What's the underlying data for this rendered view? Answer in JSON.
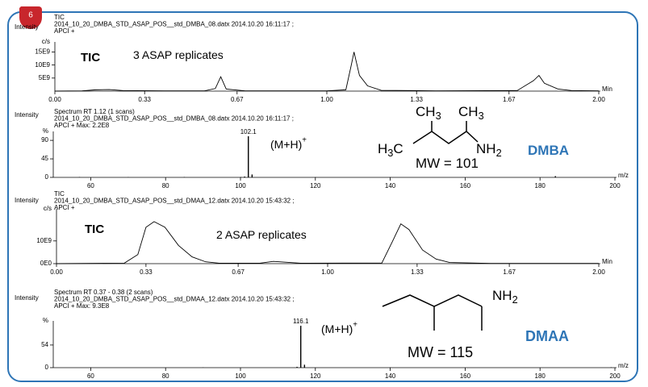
{
  "badge": "6",
  "chart_data": [
    {
      "type": "line",
      "y_label": "Intensity",
      "header": [
        "TIC",
        "2014_10_20_DMBA_STD_ASAP_POS__std_DMBA_08.datx 2014.10.20 16:11:17 ;",
        "APCI +"
      ],
      "y_unit": "c/s",
      "x_label": "Min",
      "color": "#000000",
      "x": [
        0,
        0.1,
        0.15,
        0.2,
        0.25,
        0.4,
        0.55,
        0.59,
        0.61,
        0.63,
        0.7,
        1.0,
        1.07,
        1.09,
        1.1,
        1.12,
        1.15,
        1.2,
        1.4,
        1.7,
        1.76,
        1.78,
        1.8,
        1.85,
        1.9,
        2.0
      ],
      "values": [
        0,
        100000000.0,
        500000000.0,
        600000000.0,
        200000000.0,
        100000000.0,
        100000000.0,
        1000000000.0,
        5500000000.0,
        800000000.0,
        100000000.0,
        100000000.0,
        500000000.0,
        10000000000.0,
        15000000000.0,
        6000000000.0,
        2000000000.0,
        300000000.0,
        100000000.0,
        200000000.0,
        4000000000.0,
        6000000000.0,
        3000000000.0,
        800000000.0,
        200000000.0,
        100000000.0
      ],
      "xlim": [
        0,
        2
      ],
      "ylim": [
        0,
        17000000000.0
      ],
      "xticks": [
        {
          "value": 0,
          "label": "0.00"
        },
        0.33,
        0.67,
        {
          "value": 1,
          "label": "1.00"
        },
        1.33,
        1.67,
        {
          "value": 2,
          "label": "2.00"
        }
      ],
      "yticks": [
        {
          "value": 5000000000.0,
          "label": "5E9"
        },
        {
          "value": 10000000000.0,
          "label": "10E9"
        },
        {
          "value": 15000000000.0,
          "label": "15E9"
        }
      ],
      "annotations": [
        {
          "text": "TIC"
        },
        {
          "text": "3 ASAP replicates"
        }
      ]
    },
    {
      "type": "spectrum",
      "y_label": "Intensity",
      "header": [
        "Spectrum RT 1.12 (1 scans)",
        "2014_10_20_DMBA_STD_ASAP_POS__std_DMBA_08.datx 2014.10.20 16:11:17 ;",
        "APCI + Max: 2.2E8"
      ],
      "y_unit": "%",
      "x_label": "m/z",
      "color": "#000000",
      "x": [
        57,
        70,
        85,
        100.1,
        101.1,
        102.1,
        103.1,
        120,
        140,
        184.1
      ],
      "values": [
        1,
        0.5,
        1,
        1,
        2,
        100,
        7,
        0.5,
        0.5,
        3
      ],
      "xlim": [
        50,
        200
      ],
      "ylim": [
        0,
        100
      ],
      "xticks": [
        60,
        80,
        100,
        120,
        140,
        160,
        180,
        200
      ],
      "yticks": [
        0,
        45,
        90
      ],
      "annotations": [
        {
          "text": "(M+H)",
          "sup": "+"
        },
        {
          "text": "MW = 101"
        },
        {
          "text": "DMBA"
        }
      ],
      "structure": [
        {
          "text": "CH",
          "sub": "3"
        },
        {
          "text": "CH",
          "sub": "3"
        },
        {
          "text": "H",
          "sub": "3",
          "tail": "C"
        },
        {
          "text": "NH",
          "sub": "2"
        }
      ]
    },
    {
      "type": "line",
      "y_label": "Intensity",
      "header": [
        "TIC",
        "2014_10_20_DMBA_STD_ASAP_POS__std_DMAA_12.datx 2014.10.20 15:43:32 ;",
        "APCI +"
      ],
      "y_unit": "c/s",
      "x_label": "Min",
      "color": "#000000",
      "x": [
        0,
        0.25,
        0.3,
        0.33,
        0.36,
        0.4,
        0.45,
        0.5,
        0.55,
        0.6,
        0.75,
        0.8,
        0.85,
        0.9,
        1.2,
        1.24,
        1.27,
        1.3,
        1.35,
        1.4,
        1.45,
        1.6,
        2.0
      ],
      "values": [
        0,
        200000000.0,
        4000000000.0,
        16000000000.0,
        18500000000.0,
        16000000000.0,
        8000000000.0,
        3000000000.0,
        800000000.0,
        200000000.0,
        200000000.0,
        1000000000.0,
        600000000.0,
        200000000.0,
        300000000.0,
        10000000000.0,
        17500000000.0,
        15000000000.0,
        6000000000.0,
        2000000000.0,
        500000000.0,
        100000000.0,
        100000000.0
      ],
      "xlim": [
        0,
        2
      ],
      "ylim": [
        0,
        22000000000.0
      ],
      "xticks": [
        {
          "value": 0,
          "label": "0.00"
        },
        0.33,
        0.67,
        {
          "value": 1,
          "label": "1.00"
        },
        1.33,
        1.67,
        {
          "value": 2,
          "label": "2.00"
        }
      ],
      "yticks": [
        {
          "value": 0,
          "label": "0E0"
        },
        {
          "value": 10000000000.0,
          "label": "10E9"
        }
      ],
      "annotations": [
        {
          "text": "TIC"
        },
        {
          "text": "2 ASAP replicates"
        }
      ]
    },
    {
      "type": "spectrum",
      "y_label": "Intensity",
      "header": [
        "Spectrum RT 0.37 - 0.38 (2 scans)",
        "2014_10_20_DMBA_STD_ASAP_POS__std_DMAA_12.datx 2014.10.20 15:43:32 ;",
        "APCI + Max: 9.3E8"
      ],
      "y_unit": "%",
      "x_label": "m/z",
      "color": "#000000",
      "x": [
        60,
        90,
        115.1,
        116.1,
        117.1,
        140,
        199
      ],
      "values": [
        0.5,
        0.5,
        2,
        100,
        7,
        0.5,
        1
      ],
      "xlim": [
        50,
        200
      ],
      "ylim": [
        0,
        100
      ],
      "xticks": [
        60,
        80,
        100,
        120,
        140,
        160,
        180,
        200
      ],
      "yticks": [
        0,
        54
      ],
      "annotations": [
        {
          "text": "(M+H)",
          "sup": "+"
        },
        {
          "text": "MW = 115"
        },
        {
          "text": "DMAA"
        }
      ],
      "structure": [
        {
          "text": "NH",
          "sub": "2"
        }
      ]
    }
  ]
}
